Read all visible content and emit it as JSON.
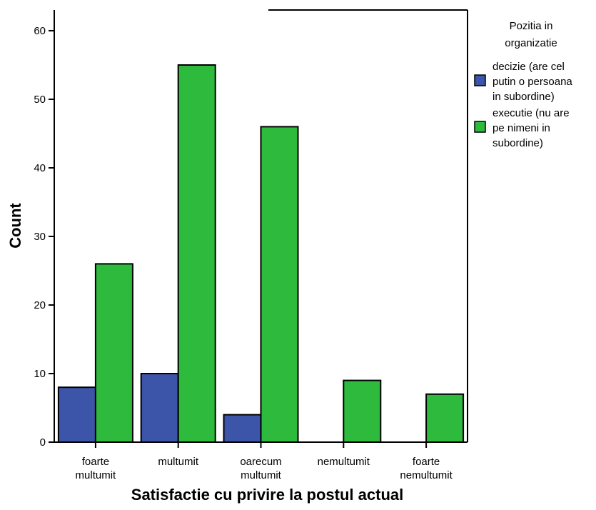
{
  "chart_data": {
    "type": "bar",
    "categories": [
      [
        "foarte",
        "multumit"
      ],
      [
        "multumit"
      ],
      [
        "oarecum",
        "multumit"
      ],
      [
        "nemultumit"
      ],
      [
        "foarte",
        "nemultumit"
      ]
    ],
    "series": [
      {
        "name": [
          "decizie (are cel",
          "putin o persoana",
          "in subordine)"
        ],
        "color": "#3d55a8",
        "values": [
          8,
          10,
          4,
          0,
          0
        ]
      },
      {
        "name": [
          "executie (nu are",
          "pe nimeni in",
          "subordine)"
        ],
        "color": "#2ebb3d",
        "values": [
          26,
          55,
          46,
          9,
          7
        ]
      }
    ],
    "xlabel": "Satisfactie cu privire la postul actual",
    "ylabel": "Count",
    "ylim": [
      0,
      60
    ],
    "yticks": [
      0,
      10,
      20,
      30,
      40,
      50,
      60
    ],
    "legend_title": [
      "Pozitia in",
      "organizatie"
    ],
    "legend_position": "right",
    "grid": false
  }
}
